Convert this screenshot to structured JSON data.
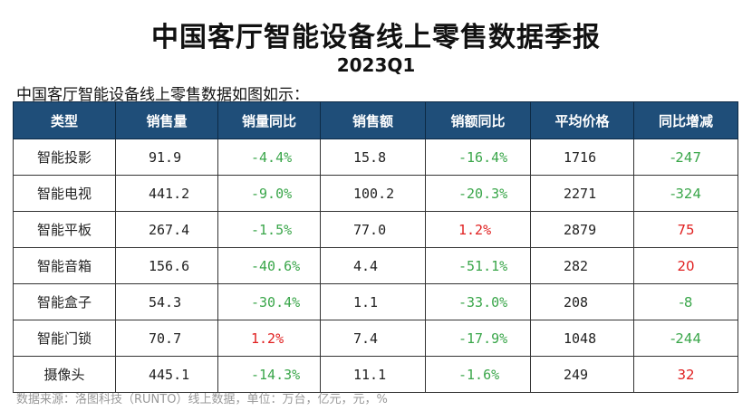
{
  "title": "中国客厅智能设备线上零售数据季报",
  "subtitle": "2023Q1",
  "intro": "中国客厅智能设备线上零售数据如图如示：",
  "table": {
    "headers": [
      "类型",
      "销售量",
      "销量同比",
      "销售额",
      "销额同比",
      "平均价格",
      "同比增减"
    ],
    "rows": [
      {
        "type": "智能投影",
        "volume": "91.9",
        "volume_yoy": "-4.4%",
        "revenue": "15.8",
        "revenue_yoy": "-16.4%",
        "avg_price": "1716",
        "price_change": "-247"
      },
      {
        "type": "智能电视",
        "volume": "441.2",
        "volume_yoy": "-9.0%",
        "revenue": "100.2",
        "revenue_yoy": "-20.3%",
        "avg_price": "2271",
        "price_change": "-324"
      },
      {
        "type": "智能平板",
        "volume": "267.4",
        "volume_yoy": "-1.5%",
        "revenue": "77.0",
        "revenue_yoy": "1.2%",
        "avg_price": "2879",
        "price_change": "75"
      },
      {
        "type": "智能音箱",
        "volume": "156.6",
        "volume_yoy": "-40.6%",
        "revenue": "4.4",
        "revenue_yoy": "-51.1%",
        "avg_price": "282",
        "price_change": "20"
      },
      {
        "type": "智能盒子",
        "volume": "54.3",
        "volume_yoy": "-30.4%",
        "revenue": "1.1",
        "revenue_yoy": "-33.0%",
        "avg_price": "208",
        "price_change": "-8"
      },
      {
        "type": "智能门锁",
        "volume": "70.7",
        "volume_yoy": "1.2%",
        "revenue": "7.4",
        "revenue_yoy": "-17.9%",
        "avg_price": "1048",
        "price_change": "-244"
      },
      {
        "type": "摄像头",
        "volume": "445.1",
        "volume_yoy": "-14.3%",
        "revenue": "11.1",
        "revenue_yoy": "-1.6%",
        "avg_price": "249",
        "price_change": "32"
      }
    ]
  },
  "footer": "数据来源：洛图科技（RUNTO）线上数据，单位：万台，亿元，元，%",
  "colors": {
    "header_bg": "#1f4e79",
    "negative": "#3aa64a",
    "positive": "#e02020"
  }
}
